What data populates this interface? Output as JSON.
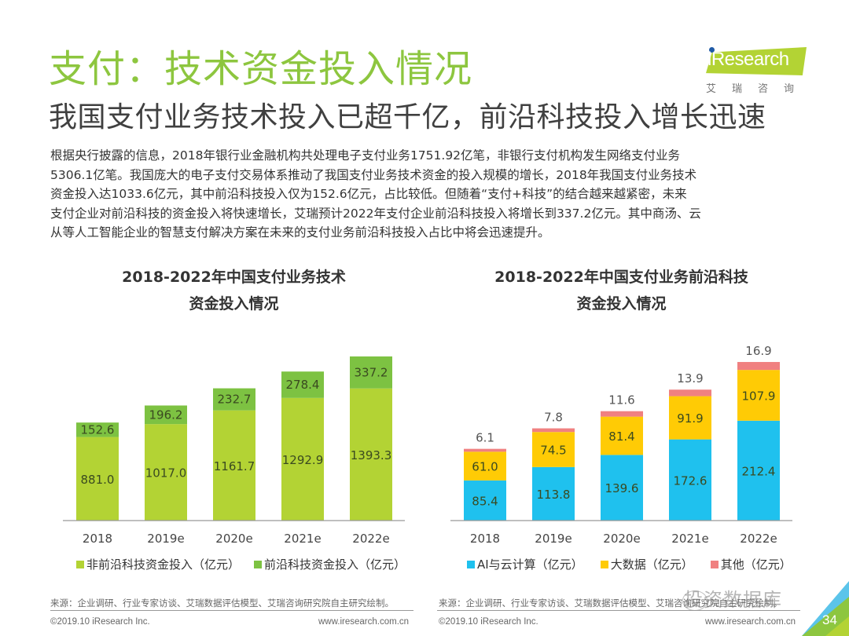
{
  "header": {
    "title": "支付：技术资金投入情况",
    "subtitle": "我国支付业务技术投入已超千亿，前沿科技投入增长迅速",
    "logo_text": "iResearch",
    "logo_cn": "艾瑞咨询"
  },
  "body": {
    "lines": [
      "根据央行披露的信息，2018年银行业金融机构共处理电子支付业务1751.92亿笔，非银行支付机构发生网络支付业务",
      "5306.1亿笔。我国庞大的电子支付交易体系推动了我国支付业务技术资金的投入规模的增长，2018年我国支付业务技术",
      "资金投入达1033.6亿元，其中前沿科技投入仅为152.6亿元，占比较低。但随着“支付+科技”的结合越来越紧密，未来",
      "支付企业对前沿科技的资金投入将快速增长，艾瑞预计2022年支付企业前沿科技投入将增长到337.2亿元。其中商汤、云",
      "从等人工智能企业的智慧支付解决方案在未来的支付业务前沿科技投入占比中将会迅速提升。"
    ]
  },
  "chart_data": [
    {
      "type": "bar",
      "stacked": true,
      "title": "2018-2022年中国支付业务技术资金投入情况",
      "title_lines": [
        "2018-2022年中国支付业务技术",
        "资金投入情况"
      ],
      "categories": [
        "2018",
        "2019e",
        "2020e",
        "2021e",
        "2022e"
      ],
      "series": [
        {
          "name": "非前沿科技资金投入（亿元）",
          "color": "#b3d334",
          "values": [
            881.0,
            1017.0,
            1161.7,
            1292.9,
            1393.3
          ]
        },
        {
          "name": "前沿科技资金投入（亿元）",
          "color": "#7dc242",
          "values": [
            152.6,
            196.2,
            232.7,
            278.4,
            337.2
          ]
        }
      ],
      "xlabel": "",
      "ylabel": "",
      "ylim": [
        0,
        1800
      ],
      "grid": false,
      "legend": "bottom"
    },
    {
      "type": "bar",
      "stacked": true,
      "title": "2018-2022年中国支付业务前沿科技资金投入情况",
      "title_lines": [
        "2018-2022年中国支付业务前沿科技",
        "资金投入情况"
      ],
      "categories": [
        "2018",
        "2019e",
        "2020e",
        "2021e",
        "2022e"
      ],
      "series": [
        {
          "name": "AI与云计算（亿元）",
          "color": "#1fc1ee",
          "values": [
            85.4,
            113.8,
            139.6,
            172.6,
            212.4
          ]
        },
        {
          "name": "大数据（亿元）",
          "color": "#ffcb05",
          "values": [
            61.0,
            74.5,
            81.4,
            91.9,
            107.9
          ]
        },
        {
          "name": "其他（亿元）",
          "color": "#f08080",
          "values": [
            6.1,
            7.8,
            11.6,
            13.9,
            16.9
          ]
        }
      ],
      "xlabel": "",
      "ylabel": "",
      "ylim": [
        0,
        350
      ],
      "grid": false,
      "legend": "bottom"
    }
  ],
  "footer": {
    "source": "来源：企业调研、行业专家访谈、艾瑞数据评估模型、艾瑞咨询研究院自主研究绘制。",
    "copyright": "©2019.10 iResearch Inc.",
    "url": "www.iresearch.com.cn",
    "page_number": "34",
    "watermark": "投资数据库"
  }
}
